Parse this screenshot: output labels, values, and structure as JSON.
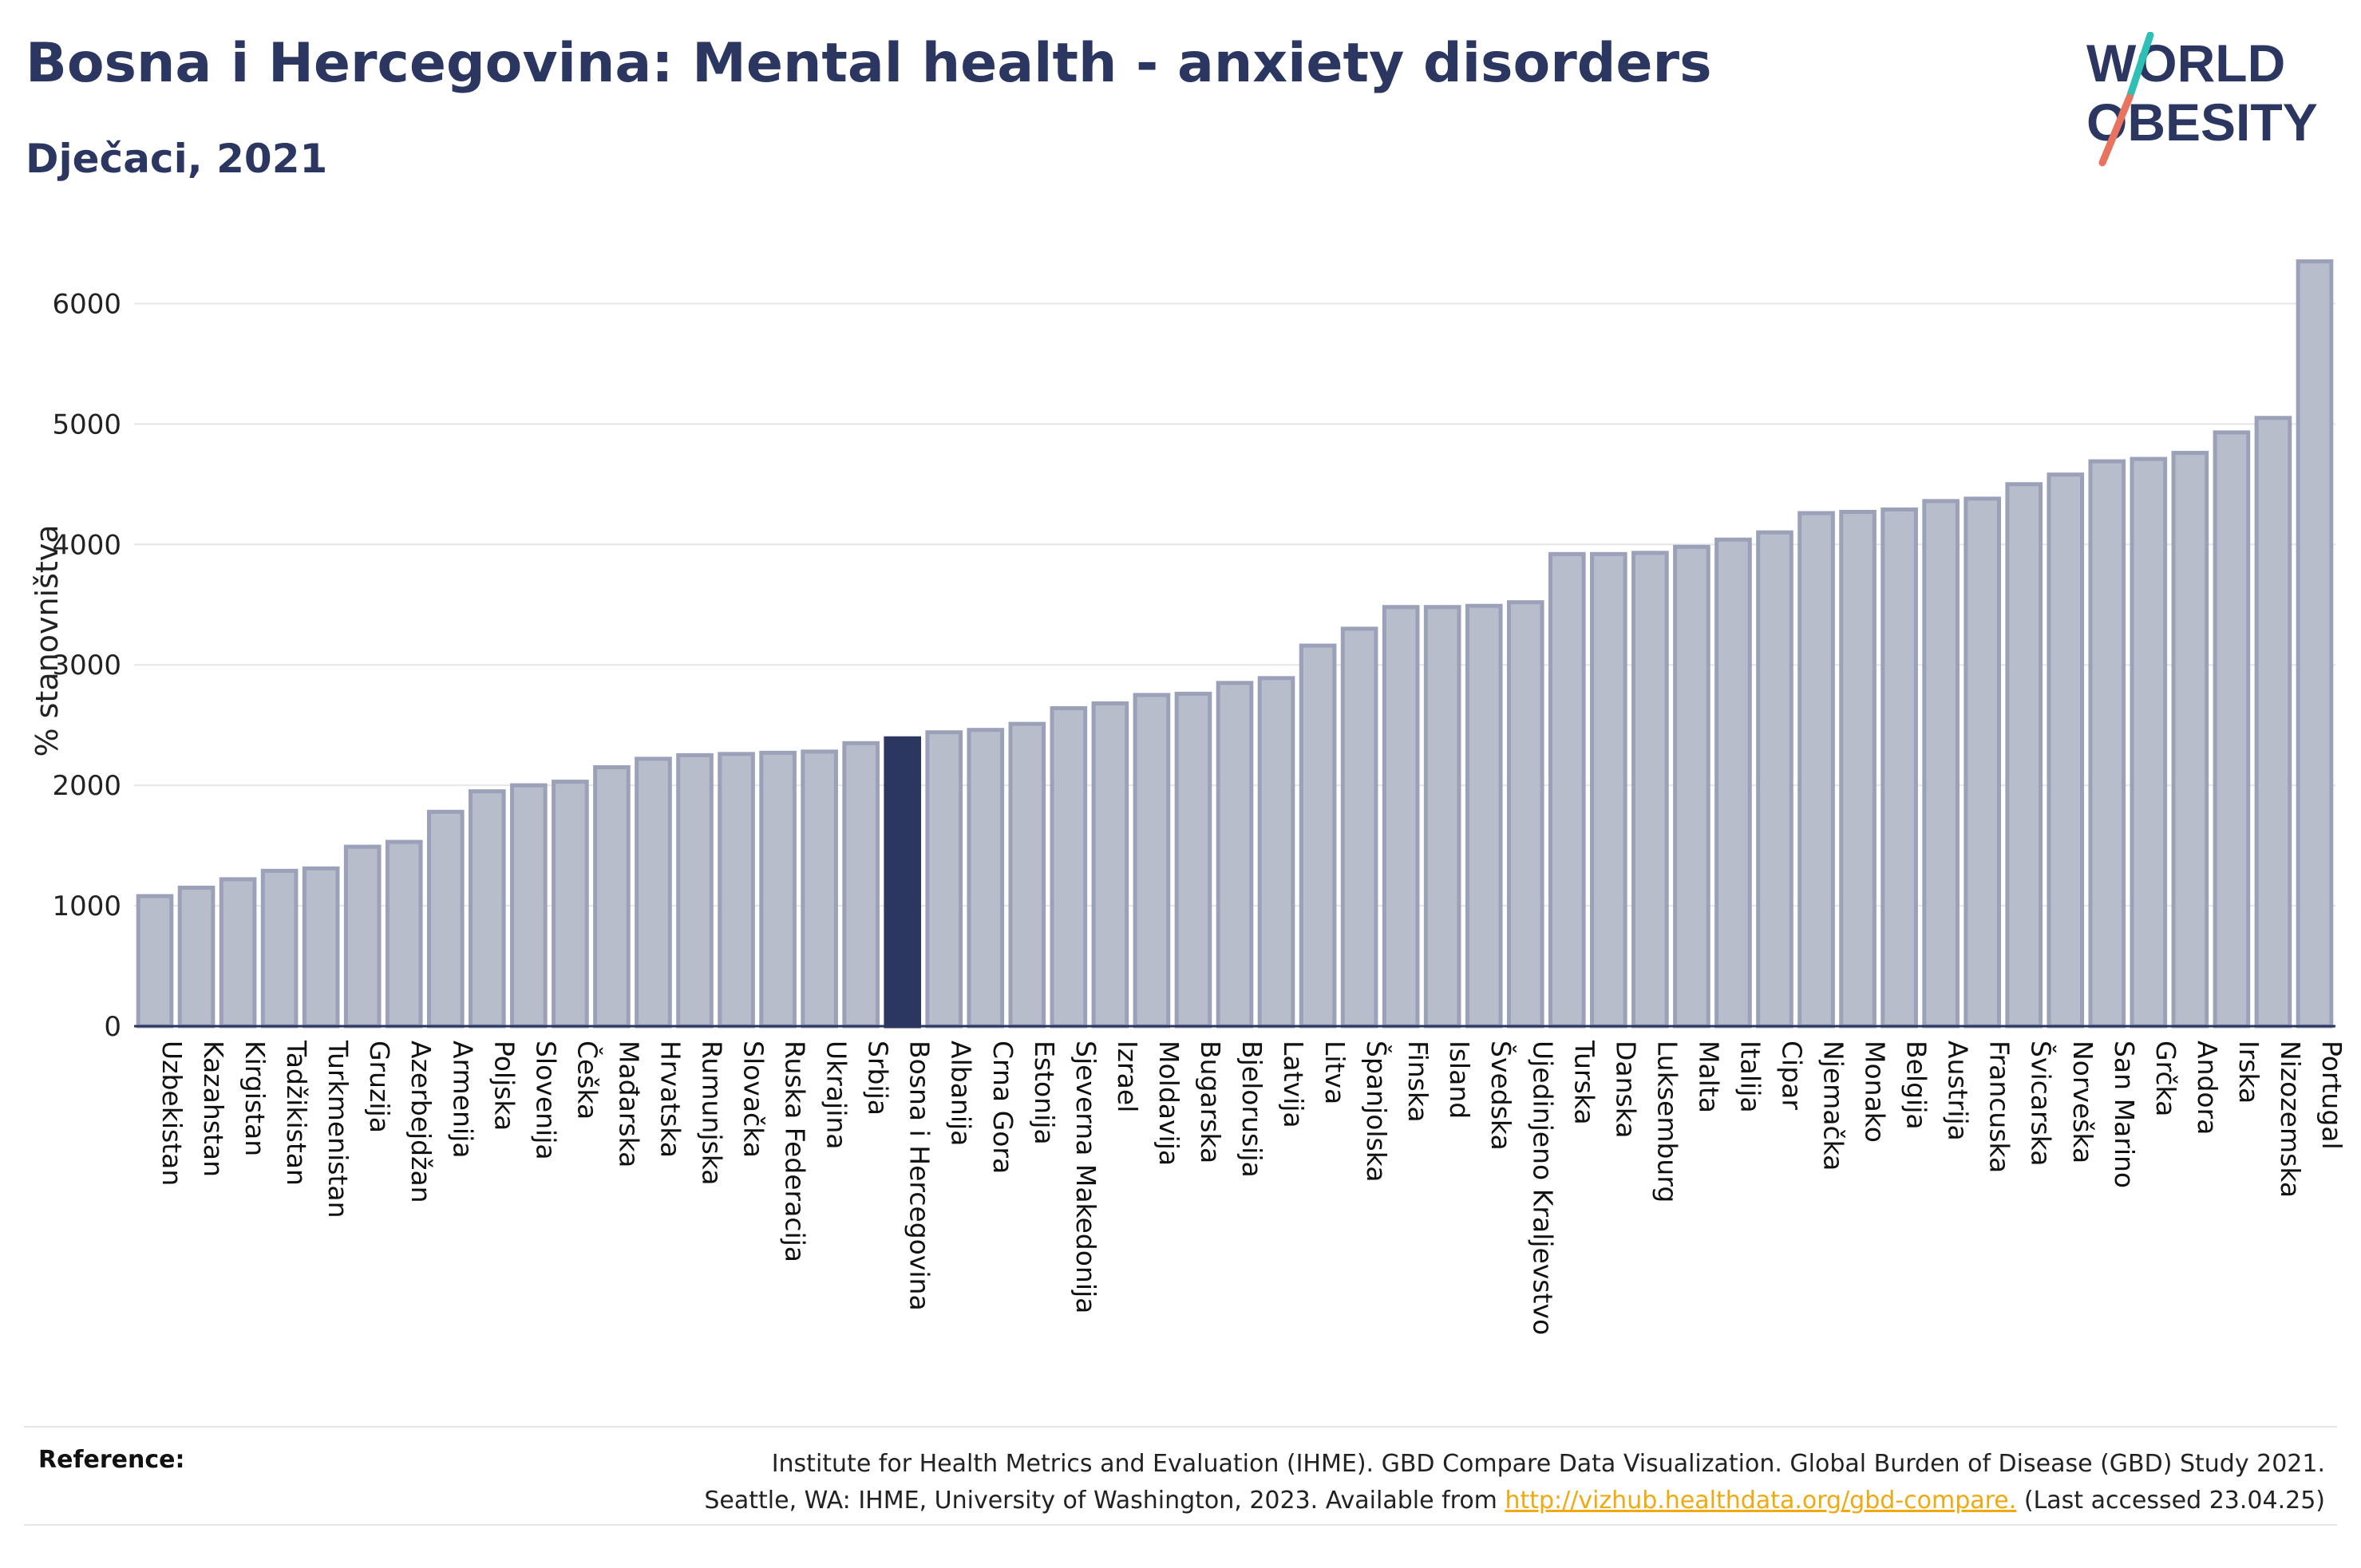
{
  "header": {
    "title": "Bosna i Hercegovina: Mental health - anxiety disorders",
    "subtitle": "Dječaci, 2021"
  },
  "logo": {
    "line1": "WORLD",
    "line2": "OBESITY"
  },
  "colors": {
    "bar": "#b8bdcb",
    "bar_stroke": "#9aa1b8",
    "highlight": "#2b3661",
    "text": "#2b3661",
    "grid": "#e6e6ea",
    "logo_teal": "#2ebfb5",
    "logo_coral": "#e8735f",
    "link": "#f0a90f"
  },
  "chart_data": {
    "type": "bar",
    "highlight": "Bosna i Hercegovina",
    "ylabel": "% stanovništva",
    "ylim": [
      0,
      6400
    ],
    "yticks": [
      0,
      1000,
      2000,
      3000,
      4000,
      5000,
      6000
    ],
    "grid": true,
    "categories": [
      "Uzbekistan",
      "Kazahstan",
      "Kirgistan",
      "Tadžikistan",
      "Turkmenistan",
      "Gruzija",
      "Azerbejdžan",
      "Armenija",
      "Poljska",
      "Slovenija",
      "Češka",
      "Mađarska",
      "Hrvatska",
      "Rumunjska",
      "Slovačka",
      "Ruska Federacija",
      "Ukrajina",
      "Srbija",
      "Bosna i Hercegovina",
      "Albanija",
      "Crna Gora",
      "Estonija",
      "Sjeverna Makedonija",
      "Izrael",
      "Moldavija",
      "Bugarska",
      "Bjelorusija",
      "Latvija",
      "Litva",
      "Španjolska",
      "Finska",
      "Island",
      "Švedska",
      "Ujedinjeno Kraljevstvo",
      "Turska",
      "Danska",
      "Luksemburg",
      "Malta",
      "Italija",
      "Cipar",
      "Njemačka",
      "Monako",
      "Belgija",
      "Austrija",
      "Francuska",
      "Švicarska",
      "Norveška",
      "San Marino",
      "Grčka",
      "Andora",
      "Irska",
      "Nizozemska",
      "Portugal"
    ],
    "values": [
      1080,
      1150,
      1220,
      1290,
      1310,
      1490,
      1530,
      1780,
      1950,
      2000,
      2030,
      2150,
      2220,
      2250,
      2260,
      2270,
      2280,
      2350,
      2390,
      2440,
      2460,
      2510,
      2640,
      2680,
      2750,
      2760,
      2850,
      2890,
      3160,
      3300,
      3480,
      3480,
      3490,
      3520,
      3920,
      3920,
      3930,
      3980,
      4040,
      4100,
      4260,
      4270,
      4290,
      4360,
      4380,
      4500,
      4580,
      4690,
      4710,
      4760,
      4930,
      5050,
      6350
    ]
  },
  "reference": {
    "label": "Reference:",
    "line1": "Institute for Health Metrics and Evaluation (IHME). GBD Compare Data Visualization. Global Burden of Disease (GBD) Study 2021.",
    "line2_prefix": "Seattle, WA: IHME, University of Washington, 2023. Available from ",
    "link": "http://vizhub.healthdata.org/gbd-compare.",
    "line2_suffix": " (Last accessed 23.04.25)"
  }
}
